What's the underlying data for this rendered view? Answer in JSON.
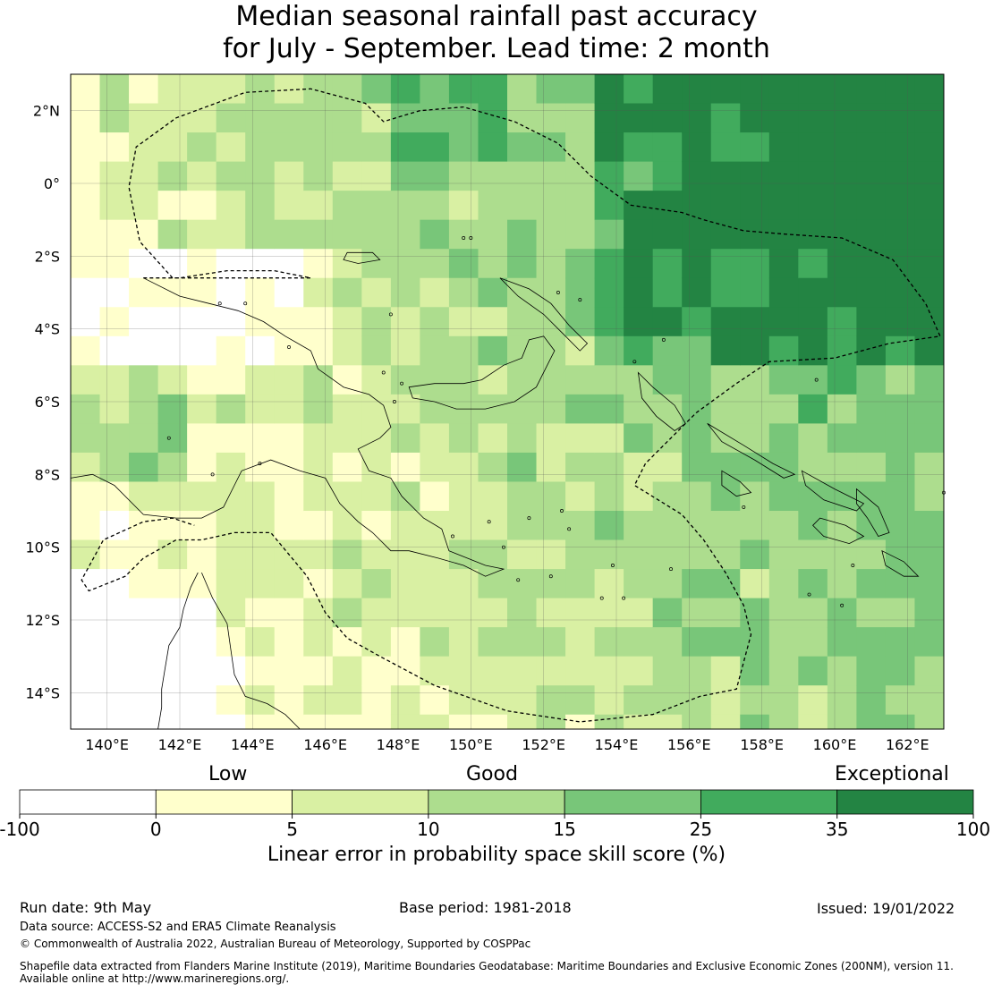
{
  "title": {
    "line1": "Median seasonal rainfall past accuracy",
    "line2": "for July - September. Lead time: 2 month"
  },
  "map": {
    "lon_range": [
      139.0,
      163.0
    ],
    "lat_range": [
      -15.0,
      3.0
    ],
    "grid_cell_deg": 0.8,
    "lat_ticks": [
      {
        "value": 2,
        "label": "2°N"
      },
      {
        "value": 0,
        "label": "0°"
      },
      {
        "value": -2,
        "label": "2°S"
      },
      {
        "value": -4,
        "label": "4°S"
      },
      {
        "value": -6,
        "label": "6°S"
      },
      {
        "value": -8,
        "label": "8°S"
      },
      {
        "value": -10,
        "label": "10°S"
      },
      {
        "value": -12,
        "label": "12°S"
      },
      {
        "value": -14,
        "label": "14°S"
      }
    ],
    "lon_ticks": [
      {
        "value": 140,
        "label": "140°E"
      },
      {
        "value": 142,
        "label": "142°E"
      },
      {
        "value": 144,
        "label": "144°E"
      },
      {
        "value": 146,
        "label": "146°E"
      },
      {
        "value": 148,
        "label": "148°E"
      },
      {
        "value": 150,
        "label": "150°E"
      },
      {
        "value": 152,
        "label": "152°E"
      },
      {
        "value": 154,
        "label": "154°E"
      },
      {
        "value": 156,
        "label": "156°E"
      },
      {
        "value": 158,
        "label": "158°E"
      },
      {
        "value": 160,
        "label": "160°E"
      },
      {
        "value": 162,
        "label": "162°E"
      }
    ],
    "eez_boundary_lonlat": [
      [
        141.0,
        -2.6
      ],
      [
        142.0,
        -2.6
      ],
      [
        143.3,
        -2.4
      ],
      [
        144.6,
        -2.4
      ],
      [
        145.6,
        -2.6
      ],
      [
        141.8,
        -2.6
      ],
      [
        140.9,
        -1.6
      ],
      [
        140.6,
        -0.1
      ],
      [
        140.8,
        1.0
      ],
      [
        141.9,
        1.8
      ],
      [
        143.8,
        2.5
      ],
      [
        145.6,
        2.6
      ],
      [
        147.1,
        2.2
      ],
      [
        147.6,
        1.7
      ],
      [
        148.6,
        2.0
      ],
      [
        149.8,
        2.1
      ],
      [
        151.2,
        1.7
      ],
      [
        152.4,
        1.1
      ],
      [
        153.3,
        0.2
      ],
      [
        154.4,
        -0.6
      ],
      [
        155.8,
        -0.8
      ],
      [
        156.4,
        -1.0
      ],
      [
        157.5,
        -1.3
      ],
      [
        158.7,
        -1.4
      ],
      [
        160.2,
        -1.5
      ],
      [
        161.6,
        -2.1
      ],
      [
        162.5,
        -3.3
      ],
      [
        162.9,
        -4.2
      ],
      [
        161.5,
        -4.4
      ],
      [
        160.0,
        -4.8
      ],
      [
        158.2,
        -4.9
      ],
      [
        157.3,
        -5.5
      ],
      [
        156.2,
        -6.3
      ],
      [
        155.4,
        -7.1
      ],
      [
        154.8,
        -7.7
      ],
      [
        154.5,
        -8.3
      ],
      [
        155.8,
        -9.1
      ],
      [
        156.4,
        -9.8
      ],
      [
        157.0,
        -10.7
      ],
      [
        157.5,
        -11.6
      ],
      [
        157.7,
        -12.4
      ],
      [
        157.3,
        -13.9
      ],
      [
        156.3,
        -14.1
      ],
      [
        155.0,
        -14.6
      ],
      [
        153.0,
        -14.8
      ],
      [
        151.0,
        -14.5
      ],
      [
        149.0,
        -13.8
      ],
      [
        147.5,
        -13.0
      ],
      [
        146.6,
        -12.5
      ],
      [
        146.0,
        -11.8
      ],
      [
        145.5,
        -10.8
      ],
      [
        145.0,
        -10.2
      ],
      [
        144.5,
        -9.6
      ],
      [
        143.5,
        -9.6
      ],
      [
        142.6,
        -9.8
      ],
      [
        141.9,
        -9.8
      ],
      [
        141.0,
        -10.3
      ],
      [
        140.5,
        -10.8
      ],
      [
        139.5,
        -11.2
      ],
      [
        139.3,
        -10.9
      ],
      [
        139.9,
        -9.8
      ],
      [
        141.0,
        -9.3
      ],
      [
        141.8,
        -9.2
      ],
      [
        142.4,
        -9.4
      ]
    ],
    "png_coast_lonlat": [
      [
        141.0,
        -2.6
      ],
      [
        142.0,
        -3.1
      ],
      [
        142.8,
        -3.3
      ],
      [
        143.6,
        -3.5
      ],
      [
        144.3,
        -3.8
      ],
      [
        144.9,
        -4.2
      ],
      [
        145.6,
        -4.6
      ],
      [
        145.8,
        -5.1
      ],
      [
        146.5,
        -5.6
      ],
      [
        147.2,
        -5.8
      ],
      [
        147.6,
        -6.1
      ],
      [
        147.8,
        -6.7
      ],
      [
        147.5,
        -7.0
      ],
      [
        146.9,
        -7.3
      ],
      [
        147.2,
        -7.9
      ],
      [
        147.8,
        -8.1
      ],
      [
        148.1,
        -8.6
      ],
      [
        148.7,
        -9.2
      ],
      [
        149.2,
        -9.5
      ],
      [
        149.4,
        -10.1
      ],
      [
        149.9,
        -10.3
      ],
      [
        150.4,
        -10.5
      ],
      [
        150.9,
        -10.6
      ],
      [
        150.4,
        -10.8
      ],
      [
        149.8,
        -10.5
      ],
      [
        149.1,
        -10.3
      ],
      [
        148.3,
        -10.1
      ],
      [
        147.8,
        -10.1
      ],
      [
        147.3,
        -9.6
      ],
      [
        146.9,
        -9.3
      ],
      [
        146.4,
        -8.8
      ],
      [
        146.0,
        -8.1
      ],
      [
        145.3,
        -7.9
      ],
      [
        144.5,
        -7.6
      ],
      [
        143.7,
        -7.9
      ],
      [
        143.5,
        -8.3
      ],
      [
        143.2,
        -8.9
      ],
      [
        142.6,
        -9.2
      ],
      [
        141.9,
        -9.2
      ],
      [
        141.0,
        -9.1
      ],
      [
        140.2,
        -8.3
      ],
      [
        139.6,
        -8.0
      ],
      [
        139.0,
        -8.1
      ]
    ],
    "newbritain_lonlat": [
      [
        148.3,
        -5.6
      ],
      [
        149.0,
        -5.5
      ],
      [
        149.8,
        -5.5
      ],
      [
        150.3,
        -5.4
      ],
      [
        150.9,
        -5.0
      ],
      [
        151.4,
        -4.8
      ],
      [
        151.6,
        -4.3
      ],
      [
        152.0,
        -4.2
      ],
      [
        152.3,
        -4.6
      ],
      [
        152.1,
        -5.0
      ],
      [
        151.8,
        -5.6
      ],
      [
        151.2,
        -6.0
      ],
      [
        150.4,
        -6.2
      ],
      [
        149.6,
        -6.2
      ],
      [
        149.0,
        -6.0
      ],
      [
        148.4,
        -5.9
      ]
    ],
    "newireland_lonlat": [
      [
        150.8,
        -2.6
      ],
      [
        151.6,
        -2.9
      ],
      [
        152.2,
        -3.3
      ],
      [
        152.7,
        -3.9
      ],
      [
        153.2,
        -4.4
      ],
      [
        153.0,
        -4.6
      ],
      [
        152.5,
        -4.1
      ],
      [
        152.0,
        -3.6
      ],
      [
        151.3,
        -3.1
      ]
    ],
    "bougainville_lonlat": [
      [
        154.6,
        -5.2
      ],
      [
        155.0,
        -5.6
      ],
      [
        155.6,
        -6.1
      ],
      [
        155.9,
        -6.6
      ],
      [
        155.6,
        -6.8
      ],
      [
        155.1,
        -6.4
      ],
      [
        154.7,
        -5.9
      ]
    ],
    "qld_coast_lonlat": [
      [
        142.5,
        -10.7
      ],
      [
        142.3,
        -11.1
      ],
      [
        142.1,
        -11.7
      ],
      [
        142.0,
        -12.2
      ],
      [
        141.7,
        -12.7
      ],
      [
        141.6,
        -13.3
      ],
      [
        141.5,
        -13.9
      ],
      [
        141.5,
        -14.4
      ],
      [
        141.4,
        -15.0
      ]
    ],
    "qld_east_coast_lonlat": [
      [
        142.6,
        -10.7
      ],
      [
        142.9,
        -11.4
      ],
      [
        143.3,
        -12.1
      ],
      [
        143.4,
        -12.8
      ],
      [
        143.5,
        -13.5
      ],
      [
        143.8,
        -14.1
      ],
      [
        144.4,
        -14.3
      ],
      [
        144.9,
        -14.6
      ],
      [
        145.3,
        -15.0
      ]
    ],
    "solomons_lonlat": [
      [
        [
          156.5,
          -6.6
        ],
        [
          157.5,
          -7.2
        ],
        [
          158.3,
          -7.7
        ],
        [
          158.9,
          -8.0
        ],
        [
          158.6,
          -8.1
        ],
        [
          157.8,
          -7.6
        ],
        [
          156.9,
          -7.1
        ]
      ],
      [
        [
          159.1,
          -7.9
        ],
        [
          160.0,
          -8.4
        ],
        [
          160.8,
          -8.8
        ],
        [
          160.6,
          -9.0
        ],
        [
          159.7,
          -8.7
        ],
        [
          159.2,
          -8.3
        ]
      ],
      [
        [
          160.6,
          -8.4
        ],
        [
          161.2,
          -8.9
        ],
        [
          161.5,
          -9.6
        ],
        [
          161.2,
          -9.7
        ],
        [
          160.9,
          -9.2
        ],
        [
          160.6,
          -8.8
        ]
      ],
      [
        [
          159.6,
          -9.2
        ],
        [
          160.3,
          -9.4
        ],
        [
          160.8,
          -9.7
        ],
        [
          160.4,
          -9.9
        ],
        [
          159.7,
          -9.7
        ],
        [
          159.4,
          -9.4
        ]
      ],
      [
        [
          161.3,
          -10.1
        ],
        [
          161.9,
          -10.4
        ],
        [
          162.3,
          -10.8
        ],
        [
          161.9,
          -10.8
        ],
        [
          161.4,
          -10.5
        ]
      ],
      [
        [
          156.9,
          -7.9
        ],
        [
          157.4,
          -8.2
        ],
        [
          157.7,
          -8.5
        ],
        [
          157.3,
          -8.6
        ],
        [
          156.9,
          -8.3
        ]
      ]
    ],
    "manus_lonlat": [
      [
        146.6,
        -1.9
      ],
      [
        147.3,
        -1.9
      ],
      [
        147.5,
        -2.1
      ],
      [
        146.9,
        -2.2
      ],
      [
        146.5,
        -2.1
      ]
    ],
    "small_islands_lonlat": [
      [
        143.1,
        -3.3
      ],
      [
        143.8,
        -3.3
      ],
      [
        145.0,
        -4.5
      ],
      [
        147.6,
        -5.2
      ],
      [
        148.1,
        -5.5
      ],
      [
        150.0,
        -1.5
      ],
      [
        149.8,
        -1.5
      ],
      [
        152.4,
        -3.0
      ],
      [
        153.0,
        -3.2
      ],
      [
        150.5,
        -9.3
      ],
      [
        151.6,
        -9.2
      ],
      [
        152.5,
        -9.0
      ],
      [
        152.7,
        -9.5
      ],
      [
        153.6,
        -11.4
      ],
      [
        154.2,
        -11.4
      ],
      [
        152.2,
        -10.8
      ],
      [
        150.9,
        -10.0
      ],
      [
        149.5,
        -9.7
      ],
      [
        141.7,
        -7.0
      ],
      [
        142.9,
        -8.0
      ],
      [
        144.2,
        -7.7
      ],
      [
        147.9,
        -6.0
      ],
      [
        151.3,
        -10.9
      ],
      [
        155.5,
        -10.6
      ],
      [
        153.9,
        -10.5
      ],
      [
        159.3,
        -11.3
      ],
      [
        160.2,
        -11.6
      ],
      [
        163.0,
        -8.5
      ],
      [
        147.8,
        -3.6
      ],
      [
        154.5,
        -4.9
      ],
      [
        155.3,
        -4.3
      ],
      [
        159.5,
        -5.4
      ],
      [
        160.5,
        -10.5
      ],
      [
        157.5,
        -8.9
      ]
    ]
  },
  "colorbar": {
    "low_label": "Low",
    "good_label": "Good",
    "exceptional_label": "Exceptional",
    "axis_label": "Linear error in probability space skill score (%)",
    "ticks": [
      "-100",
      "0",
      "5",
      "10",
      "15",
      "25",
      "35",
      "100"
    ],
    "colors": [
      "#ffffff",
      "#ffffcc",
      "#d9f0a3",
      "#addd8e",
      "#78c679",
      "#41ab5d",
      "#238443"
    ]
  },
  "footer": {
    "run_date": "Run date: 9th May",
    "base_period": "Base period: 1981-2018",
    "issued": "Issued: 19/01/2022",
    "data_source": "Data source: ACCESS-S2 and ERA5 Climate Reanalysis",
    "copyright": "© Commonwealth of Australia 2022, Australian Bureau of Meteorology, Supported by COSPPac",
    "shapefile_line1": "Shapefile data extracted from Flanders Marine Institute (2019), Maritime Boundaries Geodatabase: Maritime Boundaries and Exclusive Economic Zones (200NM), version 11.",
    "shapefile_line2": "Available online at http://www.marineregions.org/."
  }
}
